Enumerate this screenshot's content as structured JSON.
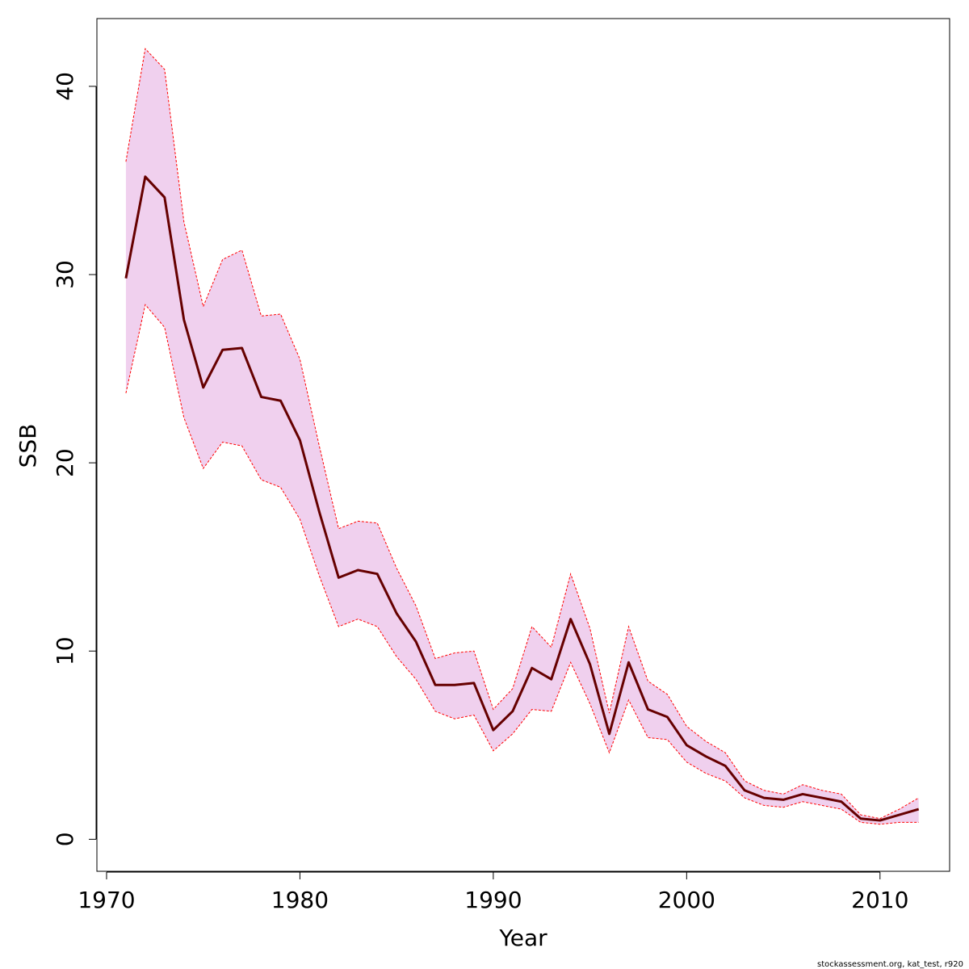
{
  "chart_data": {
    "type": "line",
    "xlabel": "Year",
    "ylabel": "SSB",
    "xlim": [
      1969.5,
      2013.6
    ],
    "ylim": [
      -1.7,
      43.6
    ],
    "x_ticks": [
      1970,
      1980,
      1990,
      2000,
      2010
    ],
    "y_ticks": [
      0,
      10,
      20,
      30,
      40
    ],
    "grid": false,
    "legend": "none",
    "colors": {
      "line": "#660000",
      "band_fill": "#f0d0ee",
      "band_edge": "#ff0000"
    },
    "x": [
      1971,
      1972,
      1973,
      1974,
      1975,
      1976,
      1977,
      1978,
      1979,
      1980,
      1981,
      1982,
      1983,
      1984,
      1985,
      1986,
      1987,
      1988,
      1989,
      1990,
      1991,
      1992,
      1993,
      1994,
      1995,
      1996,
      1997,
      1998,
      1999,
      2000,
      2001,
      2002,
      2003,
      2004,
      2005,
      2006,
      2007,
      2008,
      2009,
      2010,
      2011,
      2012
    ],
    "series": [
      {
        "values": [
          29.8,
          35.2,
          34.1,
          27.6,
          24.0,
          26.0,
          26.1,
          23.5,
          23.3,
          21.2,
          17.4,
          13.9,
          14.3,
          14.1,
          12.0,
          10.5,
          8.2,
          8.2,
          8.3,
          5.8,
          6.8,
          9.1,
          8.5,
          11.7,
          9.3,
          5.6,
          9.4,
          6.9,
          6.5,
          5.0,
          4.4,
          3.9,
          2.6,
          2.2,
          2.1,
          2.4,
          2.2,
          2.0,
          1.1,
          1.0,
          1.3,
          1.6
        ]
      },
      {
        "values": [
          23.7,
          28.4,
          27.2,
          22.4,
          19.7,
          21.1,
          20.9,
          19.1,
          18.7,
          17.0,
          14.0,
          11.3,
          11.7,
          11.3,
          9.7,
          8.5,
          6.8,
          6.4,
          6.6,
          4.7,
          5.6,
          6.9,
          6.8,
          9.4,
          7.2,
          4.6,
          7.4,
          5.4,
          5.3,
          4.1,
          3.5,
          3.1,
          2.2,
          1.8,
          1.7,
          2.0,
          1.8,
          1.6,
          0.9,
          0.8,
          0.9,
          0.9
        ]
      },
      {
        "values": [
          36.0,
          42.0,
          40.9,
          32.8,
          28.3,
          30.8,
          31.3,
          27.8,
          27.9,
          25.5,
          20.9,
          16.5,
          16.9,
          16.8,
          14.4,
          12.4,
          9.6,
          9.9,
          10.0,
          6.9,
          8.0,
          11.3,
          10.2,
          14.1,
          11.2,
          6.7,
          11.3,
          8.4,
          7.7,
          6.0,
          5.2,
          4.6,
          3.1,
          2.6,
          2.4,
          2.9,
          2.6,
          2.4,
          1.3,
          1.1,
          1.6,
          2.2
        ]
      }
    ]
  },
  "footer": {
    "text": "stockassessment.org, kat_test, r920"
  }
}
